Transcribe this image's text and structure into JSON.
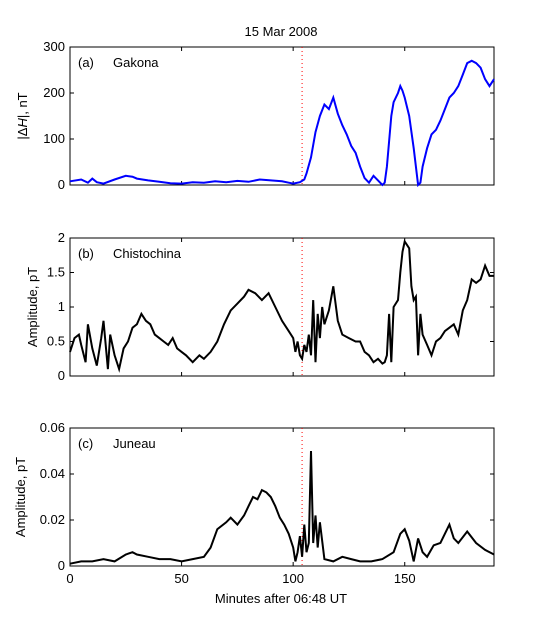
{
  "figure_title": "15 Mar 2008",
  "xlabel": "Minutes after 06:48 UT",
  "event_line": {
    "x": 104,
    "color": "#ff0000"
  },
  "chart_data": [
    {
      "type": "line",
      "panel": "(a)",
      "station": "Gakona",
      "ylabel": "|ΔH|, nT",
      "ylabel_parts": {
        "pre": "|",
        "delta": "Δ",
        "var": "H",
        "post": "|, nT"
      },
      "xlim": [
        0,
        190
      ],
      "ylim": [
        0,
        300
      ],
      "yticks": [
        0,
        100,
        200,
        300
      ],
      "xticks": [
        0,
        50,
        100,
        150
      ],
      "color": "#0000ff",
      "x": [
        0,
        5,
        8,
        10,
        12,
        15,
        20,
        25,
        28,
        30,
        35,
        40,
        45,
        50,
        55,
        60,
        65,
        70,
        75,
        80,
        85,
        90,
        95,
        98,
        100,
        103,
        105,
        106,
        108,
        110,
        112,
        114,
        116,
        118,
        120,
        122,
        124,
        126,
        128,
        130,
        132,
        134,
        136,
        138,
        140,
        141,
        142,
        143,
        144,
        145,
        147,
        148,
        149,
        150,
        152,
        154,
        156,
        157,
        158,
        160,
        162,
        164,
        166,
        168,
        170,
        172,
        174,
        176,
        178,
        180,
        182,
        184,
        186,
        188,
        190
      ],
      "y": [
        8,
        12,
        5,
        14,
        6,
        3,
        12,
        20,
        18,
        14,
        10,
        7,
        4,
        3,
        6,
        5,
        8,
        6,
        9,
        7,
        12,
        10,
        8,
        5,
        3,
        6,
        12,
        25,
        60,
        115,
        150,
        175,
        165,
        190,
        155,
        130,
        110,
        85,
        70,
        40,
        15,
        5,
        20,
        10,
        0,
        5,
        40,
        95,
        150,
        180,
        200,
        215,
        205,
        190,
        150,
        80,
        0,
        5,
        40,
        80,
        110,
        120,
        140,
        165,
        190,
        200,
        215,
        240,
        265,
        270,
        265,
        255,
        230,
        215,
        230
      ]
    },
    {
      "type": "line",
      "panel": "(b)",
      "station": "Chistochina",
      "ylabel": "Amplitude, pT",
      "xlim": [
        0,
        190
      ],
      "ylim": [
        0,
        2
      ],
      "yticks": [
        0,
        0.5,
        1,
        1.5,
        2
      ],
      "xticks": [
        0,
        50,
        100,
        150
      ],
      "color": "#000000",
      "x": [
        0,
        2,
        4,
        5,
        7,
        8,
        10,
        12,
        14,
        15,
        17,
        18,
        20,
        22,
        24,
        26,
        28,
        30,
        32,
        34,
        36,
        38,
        40,
        42,
        44,
        46,
        48,
        50,
        52,
        55,
        58,
        60,
        63,
        66,
        69,
        72,
        75,
        78,
        80,
        83,
        86,
        89,
        92,
        95,
        98,
        100,
        101,
        102,
        103,
        104,
        105,
        106,
        107,
        108,
        109,
        110,
        111,
        112,
        113,
        114,
        116,
        118,
        120,
        122,
        125,
        128,
        130,
        132,
        134,
        136,
        138,
        140,
        141,
        142,
        143,
        144,
        145,
        147,
        148,
        149,
        150,
        151,
        152,
        153,
        154,
        155,
        156,
        157,
        158,
        160,
        162,
        164,
        166,
        168,
        170,
        172,
        174,
        176,
        178,
        180,
        182,
        184,
        186,
        188,
        190
      ],
      "y": [
        0.35,
        0.55,
        0.6,
        0.45,
        0.2,
        0.75,
        0.4,
        0.15,
        0.55,
        0.8,
        0.1,
        0.6,
        0.3,
        0.1,
        0.4,
        0.5,
        0.7,
        0.75,
        0.9,
        0.8,
        0.75,
        0.6,
        0.55,
        0.5,
        0.45,
        0.55,
        0.4,
        0.35,
        0.3,
        0.2,
        0.3,
        0.25,
        0.35,
        0.5,
        0.75,
        0.95,
        1.05,
        1.15,
        1.25,
        1.2,
        1.1,
        1.2,
        1.0,
        0.8,
        0.65,
        0.55,
        0.35,
        0.5,
        0.3,
        0.25,
        0.45,
        0.35,
        0.6,
        0.3,
        1.1,
        0.2,
        0.9,
        0.55,
        1.0,
        0.75,
        0.95,
        1.3,
        0.8,
        0.6,
        0.55,
        0.5,
        0.5,
        0.35,
        0.3,
        0.2,
        0.25,
        0.18,
        0.2,
        0.3,
        0.9,
        0.2,
        1.0,
        1.1,
        1.5,
        1.8,
        1.95,
        1.9,
        1.85,
        1.3,
        1.1,
        1.15,
        0.3,
        0.9,
        0.6,
        0.45,
        0.3,
        0.5,
        0.55,
        0.65,
        0.7,
        0.75,
        0.6,
        0.95,
        1.1,
        1.4,
        1.35,
        1.4,
        1.6,
        1.45,
        1.45
      ]
    },
    {
      "type": "line",
      "panel": "(c)",
      "station": "Juneau",
      "ylabel": "Amplitude, pT",
      "xlim": [
        0,
        190
      ],
      "ylim": [
        0,
        0.06
      ],
      "yticks": [
        0,
        0.02,
        0.04,
        0.06
      ],
      "xticks": [
        0,
        50,
        100,
        150
      ],
      "color": "#000000",
      "x": [
        0,
        5,
        10,
        15,
        20,
        25,
        28,
        30,
        35,
        40,
        45,
        50,
        55,
        60,
        63,
        66,
        70,
        72,
        75,
        78,
        80,
        82,
        84,
        86,
        88,
        90,
        92,
        94,
        96,
        98,
        100,
        101,
        102,
        103,
        104,
        105,
        106,
        107,
        108,
        109,
        110,
        111,
        112,
        114,
        118,
        122,
        126,
        130,
        135,
        140,
        145,
        148,
        150,
        152,
        154,
        156,
        158,
        160,
        163,
        166,
        170,
        172,
        174,
        178,
        182,
        186,
        190
      ],
      "y": [
        0.001,
        0.002,
        0.002,
        0.003,
        0.002,
        0.005,
        0.006,
        0.005,
        0.004,
        0.003,
        0.003,
        0.002,
        0.003,
        0.004,
        0.008,
        0.016,
        0.019,
        0.021,
        0.018,
        0.022,
        0.026,
        0.03,
        0.029,
        0.033,
        0.032,
        0.03,
        0.026,
        0.021,
        0.018,
        0.014,
        0.008,
        0.002,
        0.006,
        0.013,
        0.004,
        0.018,
        0.006,
        0.01,
        0.05,
        0.01,
        0.022,
        0.008,
        0.019,
        0.003,
        0.002,
        0.004,
        0.003,
        0.002,
        0.002,
        0.003,
        0.006,
        0.014,
        0.016,
        0.011,
        0.002,
        0.012,
        0.006,
        0.004,
        0.009,
        0.01,
        0.018,
        0.012,
        0.01,
        0.015,
        0.01,
        0.007,
        0.005
      ]
    }
  ]
}
